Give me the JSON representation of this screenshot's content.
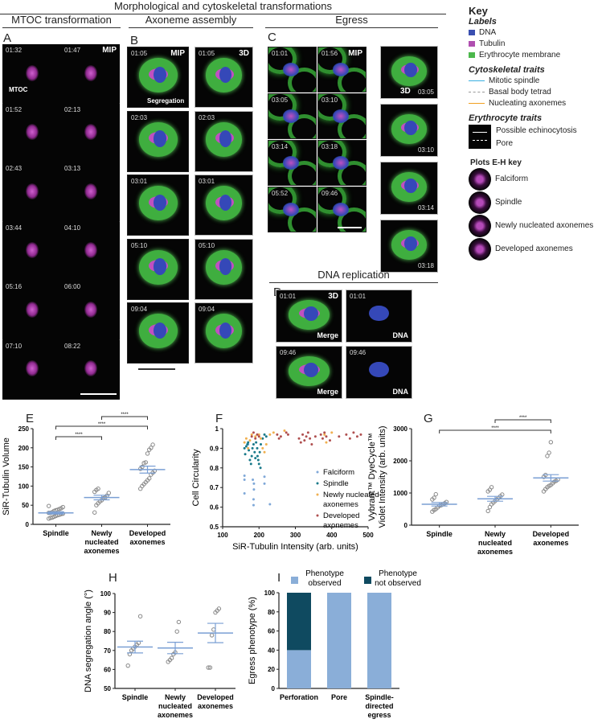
{
  "headers": {
    "main": "Morphological and cytoskeletal transformations",
    "mtoc": "MTOC transformation",
    "axoneme": "Axoneme assembly",
    "egress": "Egress",
    "dna": "DNA replication"
  },
  "panel_labels": {
    "A": "A",
    "B": "B",
    "C": "C",
    "D": "D",
    "E": "E",
    "F": "F",
    "G": "G",
    "H": "H",
    "I": "I"
  },
  "panelA": {
    "tag": "MIP",
    "mtoc_label": "MTOC",
    "timestamps": [
      "01:32",
      "01:47",
      "01:52",
      "02:13",
      "02:43",
      "03:13",
      "03:44",
      "04:10",
      "05:16",
      "06:00",
      "07:10",
      "08:22"
    ]
  },
  "panelB": {
    "mip_tag": "MIP",
    "threed_tag": "3D",
    "segregation_label": "Segregation",
    "timestamps": [
      "01:05",
      "02:03",
      "03:01",
      "05:10",
      "09:04"
    ]
  },
  "panelC": {
    "mip_tag": "MIP",
    "threed_tag": "3D",
    "timestamps": [
      "01:01",
      "01:56",
      "03:05",
      "03:10",
      "03:14",
      "03:18",
      "05:52",
      "09:46"
    ],
    "threed_timestamps": [
      "03:05",
      "03:10",
      "03:14",
      "03:18"
    ]
  },
  "panelD": {
    "threed_tag": "3D",
    "tiles": [
      {
        "time": "01:01",
        "label": "Merge"
      },
      {
        "time": "01:01",
        "label": "DNA"
      },
      {
        "time": "09:46",
        "label": "Merge"
      },
      {
        "time": "09:46",
        "label": "DNA"
      }
    ]
  },
  "key": {
    "title": "Key",
    "labels_heading": "Labels",
    "labels": [
      {
        "name": "DNA",
        "color": "#3a4fb0"
      },
      {
        "name": "Tubulin",
        "color": "#b04fb0"
      },
      {
        "name": "Erythrocyte membrane",
        "color": "#4cb84c"
      }
    ],
    "cyto_heading": "Cytoskeletal traits",
    "cyto": [
      {
        "name": "Mitotic spindle",
        "color": "#3ab0e0",
        "style": "solid"
      },
      {
        "name": "Basal body tetrad",
        "color": "#999999",
        "style": "dashed"
      },
      {
        "name": "Nucleating axonemes",
        "color": "#f0a020",
        "style": "solid"
      }
    ],
    "ery_heading": "Erythrocyte traits",
    "ery": [
      {
        "name": "Possible echinocytosis",
        "style": "solid"
      },
      {
        "name": "Pore",
        "style": "dashed"
      }
    ],
    "plots_heading": "Plots E-H key",
    "plots": [
      "Falciform",
      "Spindle",
      "Newly nucleated axonemes",
      "Developed axonemes"
    ]
  },
  "chart_data": [
    {
      "id": "E",
      "type": "scatter",
      "ylabel": "SiR-Tubulin Volume",
      "ylim": [
        0,
        250
      ],
      "yticks": [
        0,
        50,
        100,
        150,
        200,
        250
      ],
      "categories": [
        "Spindle",
        "Newly nucleated axonemes",
        "Developed axonemes"
      ],
      "points": [
        [
          15,
          17,
          18,
          20,
          22,
          24,
          25,
          27,
          28,
          30,
          30,
          32,
          35,
          37,
          38,
          40,
          42,
          45,
          48
        ],
        [
          31,
          50,
          55,
          60,
          63,
          68,
          70,
          75,
          82,
          85,
          90,
          93
        ],
        [
          93,
          100,
          105,
          110,
          115,
          120,
          130,
          135,
          140,
          145,
          150,
          160,
          162,
          185,
          195,
          200,
          208
        ]
      ],
      "mean": [
        30,
        70,
        143
      ],
      "sem": [
        3,
        6,
        9
      ],
      "sig": [
        {
          "from": 0,
          "to": 1,
          "label": "****"
        },
        {
          "from": 0,
          "to": 2,
          "label": "****"
        },
        {
          "from": 1,
          "to": 2,
          "label": "****"
        }
      ]
    },
    {
      "id": "F",
      "type": "scatter",
      "xlabel": "SiR-Tubulin Intensity (arb. units)",
      "ylabel": "Cell Circularity",
      "xlim": [
        100,
        500
      ],
      "ylim": [
        0.5,
        1.0
      ],
      "xticks": [
        100,
        200,
        300,
        400,
        500
      ],
      "yticks": [
        0.5,
        0.6,
        0.7,
        0.8,
        0.9,
        1.0
      ],
      "legend": "right",
      "series": [
        {
          "name": "Falciform",
          "color": "#7fa8d8",
          "points": [
            [
              160,
              0.76
            ],
            [
              160,
              0.74
            ],
            [
              160,
              0.67
            ],
            [
              183,
              0.74
            ],
            [
              186,
              0.72
            ],
            [
              186,
              0.69
            ],
            [
              185,
              0.64
            ],
            [
              185,
              0.61
            ],
            [
              215,
              0.755
            ],
            [
              215,
              0.72
            ],
            [
              230,
              0.615
            ],
            [
              170,
              0.92
            ]
          ]
        },
        {
          "name": "Spindle",
          "color": "#1a7a8a",
          "points": [
            [
              160,
              0.9
            ],
            [
              162,
              0.87
            ],
            [
              165,
              0.91
            ],
            [
              170,
              0.93
            ],
            [
              172,
              0.89
            ],
            [
              175,
              0.84
            ],
            [
              178,
              0.82
            ],
            [
              180,
              0.86
            ],
            [
              182,
              0.9
            ],
            [
              185,
              0.92
            ],
            [
              188,
              0.88
            ],
            [
              190,
              0.85
            ],
            [
              192,
              0.93
            ],
            [
              195,
              0.9
            ],
            [
              198,
              0.84
            ],
            [
              200,
              0.82
            ],
            [
              202,
              0.88
            ],
            [
              204,
              0.8
            ],
            [
              205,
              0.92
            ],
            [
              210,
              0.95
            ],
            [
              215,
              0.97
            ],
            [
              220,
              0.96
            ],
            [
              168,
              0.92
            ],
            [
              196,
              0.86
            ]
          ]
        },
        {
          "name": "Newly nucleated axonemes",
          "color": "#f0b050",
          "points": [
            [
              160,
              0.93
            ],
            [
              165,
              0.95
            ],
            [
              170,
              0.9
            ],
            [
              180,
              0.97
            ],
            [
              190,
              0.96
            ],
            [
              200,
              0.97
            ],
            [
              205,
              0.95
            ],
            [
              210,
              0.9
            ],
            [
              215,
              0.88
            ],
            [
              220,
              0.92
            ],
            [
              230,
              0.97
            ],
            [
              240,
              0.98
            ],
            [
              270,
              0.99
            ],
            [
              380,
              0.97
            ],
            [
              385,
              0.93
            ],
            [
              400,
              0.98
            ],
            [
              175,
              0.94
            ]
          ]
        },
        {
          "name": "Developed axonemes",
          "color": "#b05050",
          "points": [
            [
              180,
              0.96
            ],
            [
              185,
              0.98
            ],
            [
              190,
              0.95
            ],
            [
              195,
              0.97
            ],
            [
              200,
              0.96
            ],
            [
              250,
              0.97
            ],
            [
              255,
              0.95
            ],
            [
              260,
              0.96
            ],
            [
              275,
              0.98
            ],
            [
              280,
              0.97
            ],
            [
              310,
              0.95
            ],
            [
              315,
              0.93
            ],
            [
              320,
              0.97
            ],
            [
              325,
              0.94
            ],
            [
              330,
              0.96
            ],
            [
              335,
              0.98
            ],
            [
              340,
              0.95
            ],
            [
              345,
              0.92
            ],
            [
              355,
              0.96
            ],
            [
              370,
              0.97
            ],
            [
              375,
              0.95
            ],
            [
              380,
              0.98
            ],
            [
              385,
              0.96
            ],
            [
              395,
              0.94
            ],
            [
              420,
              0.96
            ],
            [
              440,
              0.97
            ],
            [
              450,
              0.95
            ],
            [
              460,
              0.98
            ],
            [
              470,
              0.96
            ],
            [
              480,
              0.97
            ]
          ]
        }
      ]
    },
    {
      "id": "G",
      "type": "scatter",
      "ylabel": "Vybrant™ DyeCycle™ Violet Intensity (arb. units)",
      "ylim": [
        0,
        3000
      ],
      "yticks": [
        0,
        1000,
        2000,
        3000
      ],
      "categories": [
        "Spindle",
        "Newly nucleated axonemes",
        "Developed axonemes"
      ],
      "points": [
        [
          420,
          470,
          500,
          550,
          600,
          620,
          650,
          680,
          720,
          800,
          850,
          960
        ],
        [
          440,
          560,
          650,
          700,
          750,
          800,
          850,
          900,
          950,
          1050,
          1100,
          1180
        ],
        [
          1050,
          1120,
          1180,
          1220,
          1250,
          1300,
          1350,
          1380,
          1420,
          1500,
          1560,
          2150,
          2250,
          2580
        ]
      ],
      "mean": [
        650,
        820,
        1470
      ],
      "sem": [
        55,
        75,
        100
      ],
      "sig": [
        {
          "from": 0,
          "to": 2,
          "label": "****"
        },
        {
          "from": 1,
          "to": 2,
          "label": "****"
        }
      ]
    },
    {
      "id": "H",
      "type": "scatter",
      "ylabel": "DNA segregation angle  (°)",
      "ylim": [
        50,
        100
      ],
      "yticks": [
        50,
        60,
        70,
        80,
        90,
        100
      ],
      "categories": [
        "Spindle",
        "Newly nucleated axonemes",
        "Developed axonemes"
      ],
      "points": [
        [
          62,
          68,
          70,
          71,
          72,
          73,
          74,
          88
        ],
        [
          64,
          65,
          66,
          68,
          69,
          80,
          85
        ],
        [
          61,
          61,
          78,
          81,
          90,
          91,
          92
        ]
      ],
      "mean": [
        71.8,
        71.3,
        79.2
      ],
      "sem": [
        3.1,
        3.0,
        5.1
      ]
    },
    {
      "id": "I",
      "type": "bar",
      "stacked": true,
      "ylabel": "Egress phenotype (%)",
      "ylim": [
        0,
        100
      ],
      "yticks": [
        0,
        20,
        40,
        60,
        80,
        100
      ],
      "categories": [
        "Perforation",
        "Pore",
        "Spindle-directed egress"
      ],
      "legend": "top",
      "series": [
        {
          "name": "Phenotype observed",
          "color": "#8aaed8",
          "values": [
            40,
            100,
            100
          ]
        },
        {
          "name": "Phenotype not observed",
          "color": "#0f4a60",
          "values": [
            60,
            0,
            0
          ]
        }
      ]
    }
  ]
}
